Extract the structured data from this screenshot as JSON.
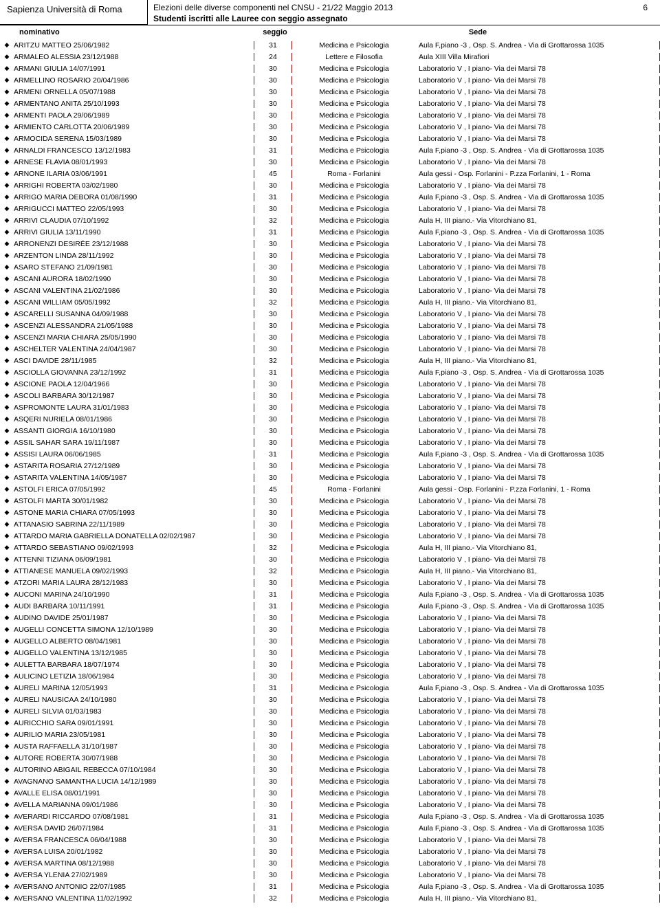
{
  "header": {
    "university": "Sapienza Università di Roma",
    "title": "Elezioni delle diverse componenti nel CNSU - 21/22 Maggio 2013",
    "page_number": "6",
    "subtitle": "Studenti iscritti alle Lauree con seggio assegnato"
  },
  "columns": {
    "nominativo": "nominativo",
    "seggio": "seggio",
    "sede": "Sede"
  },
  "rows": [
    {
      "n": "ARITZU MATTEO 25/06/1982",
      "s": "31",
      "f": "Medicina e Psicologia",
      "d": "Aula F,piano -3 , Osp. S. Andrea - Via di Grottarossa 1035"
    },
    {
      "n": "ARMALEO ALESSIA 23/12/1988",
      "s": "24",
      "f": "Lettere e Filosofia",
      "d": "Aula XIII Villa Mirafiori"
    },
    {
      "n": "ARMANI GIULIA 14/07/1991",
      "s": "30",
      "f": "Medicina e Psicologia",
      "d": "Laboratorio V , I piano-  Via dei Marsi 78"
    },
    {
      "n": "ARMELLINO ROSARIO 20/04/1986",
      "s": "30",
      "f": "Medicina e Psicologia",
      "d": "Laboratorio V , I piano-  Via dei Marsi 78"
    },
    {
      "n": "ARMENI ORNELLA 05/07/1988",
      "s": "30",
      "f": "Medicina e Psicologia",
      "d": "Laboratorio V , I piano-  Via dei Marsi 78"
    },
    {
      "n": "ARMENTANO ANITA 25/10/1993",
      "s": "30",
      "f": "Medicina e Psicologia",
      "d": "Laboratorio V , I piano-  Via dei Marsi 78"
    },
    {
      "n": "ARMENTI PAOLA 29/06/1989",
      "s": "30",
      "f": "Medicina e Psicologia",
      "d": "Laboratorio V , I piano-  Via dei Marsi 78"
    },
    {
      "n": "ARMIENTO CARLOTTA 20/06/1989",
      "s": "30",
      "f": "Medicina e Psicologia",
      "d": "Laboratorio V , I piano-  Via dei Marsi 78"
    },
    {
      "n": "ARMOCIDA SERENA 15/03/1989",
      "s": "30",
      "f": "Medicina e Psicologia",
      "d": "Laboratorio V , I piano-  Via dei Marsi 78"
    },
    {
      "n": "ARNALDI FRANCESCO 13/12/1983",
      "s": "31",
      "f": "Medicina e Psicologia",
      "d": "Aula F,piano -3 , Osp. S. Andrea - Via di Grottarossa 1035"
    },
    {
      "n": "ARNESE FLAVIA 08/01/1993",
      "s": "30",
      "f": "Medicina e Psicologia",
      "d": "Laboratorio V , I piano-  Via dei Marsi 78"
    },
    {
      "n": "ARNONE ILARIA 03/06/1991",
      "s": "45",
      "f": "Roma - Forlanini",
      "d": "Aula gessi - Osp. Forlanini - P.zza Forlanini, 1 - Roma"
    },
    {
      "n": "ARRIGHI ROBERTA 03/02/1980",
      "s": "30",
      "f": "Medicina e Psicologia",
      "d": "Laboratorio V , I piano-  Via dei Marsi 78"
    },
    {
      "n": "ARRIGO MARIA DEBORA 01/08/1990",
      "s": "31",
      "f": "Medicina e Psicologia",
      "d": "Aula F,piano -3 , Osp. S. Andrea - Via di Grottarossa 1035"
    },
    {
      "n": "ARRIGUCCI MATTEO 22/05/1993",
      "s": "30",
      "f": "Medicina e Psicologia",
      "d": "Laboratorio V , I piano-  Via dei Marsi 78"
    },
    {
      "n": "ARRIVI CLAUDIA 07/10/1992",
      "s": "32",
      "f": "Medicina e Psicologia",
      "d": "Aula H, III piano.- Via Vitorchiano 81,"
    },
    {
      "n": "ARRIVI GIULIA 13/11/1990",
      "s": "31",
      "f": "Medicina e Psicologia",
      "d": "Aula F,piano -3 , Osp. S. Andrea - Via di Grottarossa 1035"
    },
    {
      "n": "ARRONENZI DESIRÉE 23/12/1988",
      "s": "30",
      "f": "Medicina e Psicologia",
      "d": "Laboratorio V , I piano-  Via dei Marsi 78"
    },
    {
      "n": "ARZENTON LINDA 28/11/1992",
      "s": "30",
      "f": "Medicina e Psicologia",
      "d": "Laboratorio V , I piano-  Via dei Marsi 78"
    },
    {
      "n": "ASARO STEFANO 21/09/1981",
      "s": "30",
      "f": "Medicina e Psicologia",
      "d": "Laboratorio V , I piano-  Via dei Marsi 78"
    },
    {
      "n": "ASCANI AURORA 18/02/1990",
      "s": "30",
      "f": "Medicina e Psicologia",
      "d": "Laboratorio V , I piano-  Via dei Marsi 78"
    },
    {
      "n": "ASCANI VALENTINA 21/02/1986",
      "s": "30",
      "f": "Medicina e Psicologia",
      "d": "Laboratorio V , I piano-  Via dei Marsi 78"
    },
    {
      "n": "ASCANI WILLIAM 05/05/1992",
      "s": "32",
      "f": "Medicina e Psicologia",
      "d": "Aula H, III piano.- Via Vitorchiano 81,"
    },
    {
      "n": "ASCARELLI SUSANNA 04/09/1988",
      "s": "30",
      "f": "Medicina e Psicologia",
      "d": "Laboratorio V , I piano-  Via dei Marsi 78"
    },
    {
      "n": "ASCENZI ALESSANDRA 21/05/1988",
      "s": "30",
      "f": "Medicina e Psicologia",
      "d": "Laboratorio V , I piano-  Via dei Marsi 78"
    },
    {
      "n": "ASCENZI MARIA CHIARA 25/05/1990",
      "s": "30",
      "f": "Medicina e Psicologia",
      "d": "Laboratorio V , I piano-  Via dei Marsi 78"
    },
    {
      "n": "ASCHELTER VALENTINA 24/04/1987",
      "s": "30",
      "f": "Medicina e Psicologia",
      "d": "Laboratorio V , I piano-  Via dei Marsi 78"
    },
    {
      "n": "ASCI DAVIDE 28/11/1985",
      "s": "32",
      "f": "Medicina e Psicologia",
      "d": "Aula H, III piano.- Via Vitorchiano 81,"
    },
    {
      "n": "ASCIOLLA GIOVANNA 23/12/1992",
      "s": "31",
      "f": "Medicina e Psicologia",
      "d": "Aula F,piano -3 , Osp. S. Andrea - Via di Grottarossa 1035"
    },
    {
      "n": "ASCIONE PAOLA 12/04/1966",
      "s": "30",
      "f": "Medicina e Psicologia",
      "d": "Laboratorio V , I piano-  Via dei Marsi 78"
    },
    {
      "n": "ASCOLI BARBARA 30/12/1987",
      "s": "30",
      "f": "Medicina e Psicologia",
      "d": "Laboratorio V , I piano-  Via dei Marsi 78"
    },
    {
      "n": "ASPROMONTE LAURA 31/01/1983",
      "s": "30",
      "f": "Medicina e Psicologia",
      "d": "Laboratorio V , I piano-  Via dei Marsi 78"
    },
    {
      "n": "ASQERI NURIELA 08/01/1986",
      "s": "30",
      "f": "Medicina e Psicologia",
      "d": "Laboratorio V , I piano-  Via dei Marsi 78"
    },
    {
      "n": "ASSANTI GIORGIA 16/10/1980",
      "s": "30",
      "f": "Medicina e Psicologia",
      "d": "Laboratorio V , I piano-  Via dei Marsi 78"
    },
    {
      "n": "ASSIL SAHAR SARA 19/11/1987",
      "s": "30",
      "f": "Medicina e Psicologia",
      "d": "Laboratorio V , I piano-  Via dei Marsi 78"
    },
    {
      "n": "ASSISI LAURA 06/06/1985",
      "s": "31",
      "f": "Medicina e Psicologia",
      "d": "Aula F,piano -3 , Osp. S. Andrea - Via di Grottarossa 1035"
    },
    {
      "n": "ASTARITA ROSARIA 27/12/1989",
      "s": "30",
      "f": "Medicina e Psicologia",
      "d": "Laboratorio V , I piano-  Via dei Marsi 78"
    },
    {
      "n": "ASTARITA VALENTINA 14/05/1987",
      "s": "30",
      "f": "Medicina e Psicologia",
      "d": "Laboratorio V , I piano-  Via dei Marsi 78"
    },
    {
      "n": "ASTOLFI ERICA 07/05/1992",
      "s": "45",
      "f": "Roma - Forlanini",
      "d": "Aula gessi - Osp. Forlanini - P.zza Forlanini, 1 - Roma"
    },
    {
      "n": "ASTOLFI MARTA 30/01/1982",
      "s": "30",
      "f": "Medicina e Psicologia",
      "d": "Laboratorio V , I piano-  Via dei Marsi 78"
    },
    {
      "n": "ASTONE MARIA CHIARA 07/05/1993",
      "s": "30",
      "f": "Medicina e Psicologia",
      "d": "Laboratorio V , I piano-  Via dei Marsi 78"
    },
    {
      "n": "ATTANASIO SABRINA 22/11/1989",
      "s": "30",
      "f": "Medicina e Psicologia",
      "d": "Laboratorio V , I piano-  Via dei Marsi 78"
    },
    {
      "n": "ATTARDO MARIA GABRIELLA DONATELLA 02/02/1987",
      "s": "30",
      "f": "Medicina e Psicologia",
      "d": "Laboratorio V , I piano-  Via dei Marsi 78"
    },
    {
      "n": "ATTARDO SEBASTIANO 09/02/1993",
      "s": "32",
      "f": "Medicina e Psicologia",
      "d": "Aula H, III piano.- Via Vitorchiano 81,"
    },
    {
      "n": "ATTENNI TIZIANA 06/09/1981",
      "s": "30",
      "f": "Medicina e Psicologia",
      "d": "Laboratorio V , I piano-  Via dei Marsi 78"
    },
    {
      "n": "ATTIANESE MANUELA 09/02/1993",
      "s": "32",
      "f": "Medicina e Psicologia",
      "d": "Aula H, III piano.- Via Vitorchiano 81,"
    },
    {
      "n": "ATZORI MARIA LAURA 28/12/1983",
      "s": "30",
      "f": "Medicina e Psicologia",
      "d": "Laboratorio V , I piano-  Via dei Marsi 78"
    },
    {
      "n": "AUCONI MARINA 24/10/1990",
      "s": "31",
      "f": "Medicina e Psicologia",
      "d": "Aula F,piano -3 , Osp. S. Andrea - Via di Grottarossa 1035"
    },
    {
      "n": "AUDI BARBARA 10/11/1991",
      "s": "31",
      "f": "Medicina e Psicologia",
      "d": "Aula F,piano -3 , Osp. S. Andrea - Via di Grottarossa 1035"
    },
    {
      "n": "AUDINO DAVIDE 25/01/1987",
      "s": "30",
      "f": "Medicina e Psicologia",
      "d": "Laboratorio V , I piano-  Via dei Marsi 78"
    },
    {
      "n": "AUGELLI CONCETTA SIMONA 12/10/1989",
      "s": "30",
      "f": "Medicina e Psicologia",
      "d": "Laboratorio V , I piano-  Via dei Marsi 78"
    },
    {
      "n": "AUGELLO ALBERTO 08/04/1981",
      "s": "30",
      "f": "Medicina e Psicologia",
      "d": "Laboratorio V , I piano-  Via dei Marsi 78"
    },
    {
      "n": "AUGELLO VALENTINA 13/12/1985",
      "s": "30",
      "f": "Medicina e Psicologia",
      "d": "Laboratorio V , I piano-  Via dei Marsi 78"
    },
    {
      "n": "AULETTA BARBARA 18/07/1974",
      "s": "30",
      "f": "Medicina e Psicologia",
      "d": "Laboratorio V , I piano-  Via dei Marsi 78"
    },
    {
      "n": "AULICINO LETIZIA 18/06/1984",
      "s": "30",
      "f": "Medicina e Psicologia",
      "d": "Laboratorio V , I piano-  Via dei Marsi 78"
    },
    {
      "n": "AURELI MARINA 12/05/1993",
      "s": "31",
      "f": "Medicina e Psicologia",
      "d": "Aula F,piano -3 , Osp. S. Andrea - Via di Grottarossa 1035"
    },
    {
      "n": "AURELI NAUSICAA 24/10/1980",
      "s": "30",
      "f": "Medicina e Psicologia",
      "d": "Laboratorio V , I piano-  Via dei Marsi 78"
    },
    {
      "n": "AURELI SILVIA 01/03/1983",
      "s": "30",
      "f": "Medicina e Psicologia",
      "d": "Laboratorio V , I piano-  Via dei Marsi 78"
    },
    {
      "n": "AURICCHIO SARA 09/01/1991",
      "s": "30",
      "f": "Medicina e Psicologia",
      "d": "Laboratorio V , I piano-  Via dei Marsi 78"
    },
    {
      "n": "AURILIO MARIA 23/05/1981",
      "s": "30",
      "f": "Medicina e Psicologia",
      "d": "Laboratorio V , I piano-  Via dei Marsi 78"
    },
    {
      "n": "AUSTA RAFFAELLA 31/10/1987",
      "s": "30",
      "f": "Medicina e Psicologia",
      "d": "Laboratorio V , I piano-  Via dei Marsi 78"
    },
    {
      "n": "AUTORE ROBERTA 30/07/1988",
      "s": "30",
      "f": "Medicina e Psicologia",
      "d": "Laboratorio V , I piano-  Via dei Marsi 78"
    },
    {
      "n": "AUTORINO ABIGAIL REBECCA 07/10/1984",
      "s": "30",
      "f": "Medicina e Psicologia",
      "d": "Laboratorio V , I piano-  Via dei Marsi 78"
    },
    {
      "n": "AVAGNANO SAMANTHA LUCIA 14/12/1989",
      "s": "30",
      "f": "Medicina e Psicologia",
      "d": "Laboratorio V , I piano-  Via dei Marsi 78"
    },
    {
      "n": "AVALLE ELISA 08/01/1991",
      "s": "30",
      "f": "Medicina e Psicologia",
      "d": "Laboratorio V , I piano-  Via dei Marsi 78"
    },
    {
      "n": "AVELLA MARIANNA 09/01/1986",
      "s": "30",
      "f": "Medicina e Psicologia",
      "d": "Laboratorio V , I piano-  Via dei Marsi 78"
    },
    {
      "n": "AVERARDI RICCARDO 07/08/1981",
      "s": "31",
      "f": "Medicina e Psicologia",
      "d": "Aula F,piano -3 , Osp. S. Andrea - Via di Grottarossa 1035"
    },
    {
      "n": "AVERSA DAVID 26/07/1984",
      "s": "31",
      "f": "Medicina e Psicologia",
      "d": "Aula F,piano -3 , Osp. S. Andrea - Via di Grottarossa 1035"
    },
    {
      "n": "AVERSA FRANCESCA 06/04/1988",
      "s": "30",
      "f": "Medicina e Psicologia",
      "d": "Laboratorio V , I piano-  Via dei Marsi 78"
    },
    {
      "n": "AVERSA LUISA 20/01/1982",
      "s": "30",
      "f": "Medicina e Psicologia",
      "d": "Laboratorio V , I piano-  Via dei Marsi 78"
    },
    {
      "n": "AVERSA MARTINA 08/12/1988",
      "s": "30",
      "f": "Medicina e Psicologia",
      "d": "Laboratorio V , I piano-  Via dei Marsi 78"
    },
    {
      "n": "AVERSA YLENIA 27/02/1989",
      "s": "30",
      "f": "Medicina e Psicologia",
      "d": "Laboratorio V , I piano-  Via dei Marsi 78"
    },
    {
      "n": "AVERSANO ANTONIO 22/07/1985",
      "s": "31",
      "f": "Medicina e Psicologia",
      "d": "Aula F,piano -3 , Osp. S. Andrea - Via di Grottarossa 1035"
    },
    {
      "n": "AVERSANO VALENTINA 11/02/1992",
      "s": "32",
      "f": "Medicina e Psicologia",
      "d": "Aula H, III piano.- Via Vitorchiano 81,"
    }
  ]
}
